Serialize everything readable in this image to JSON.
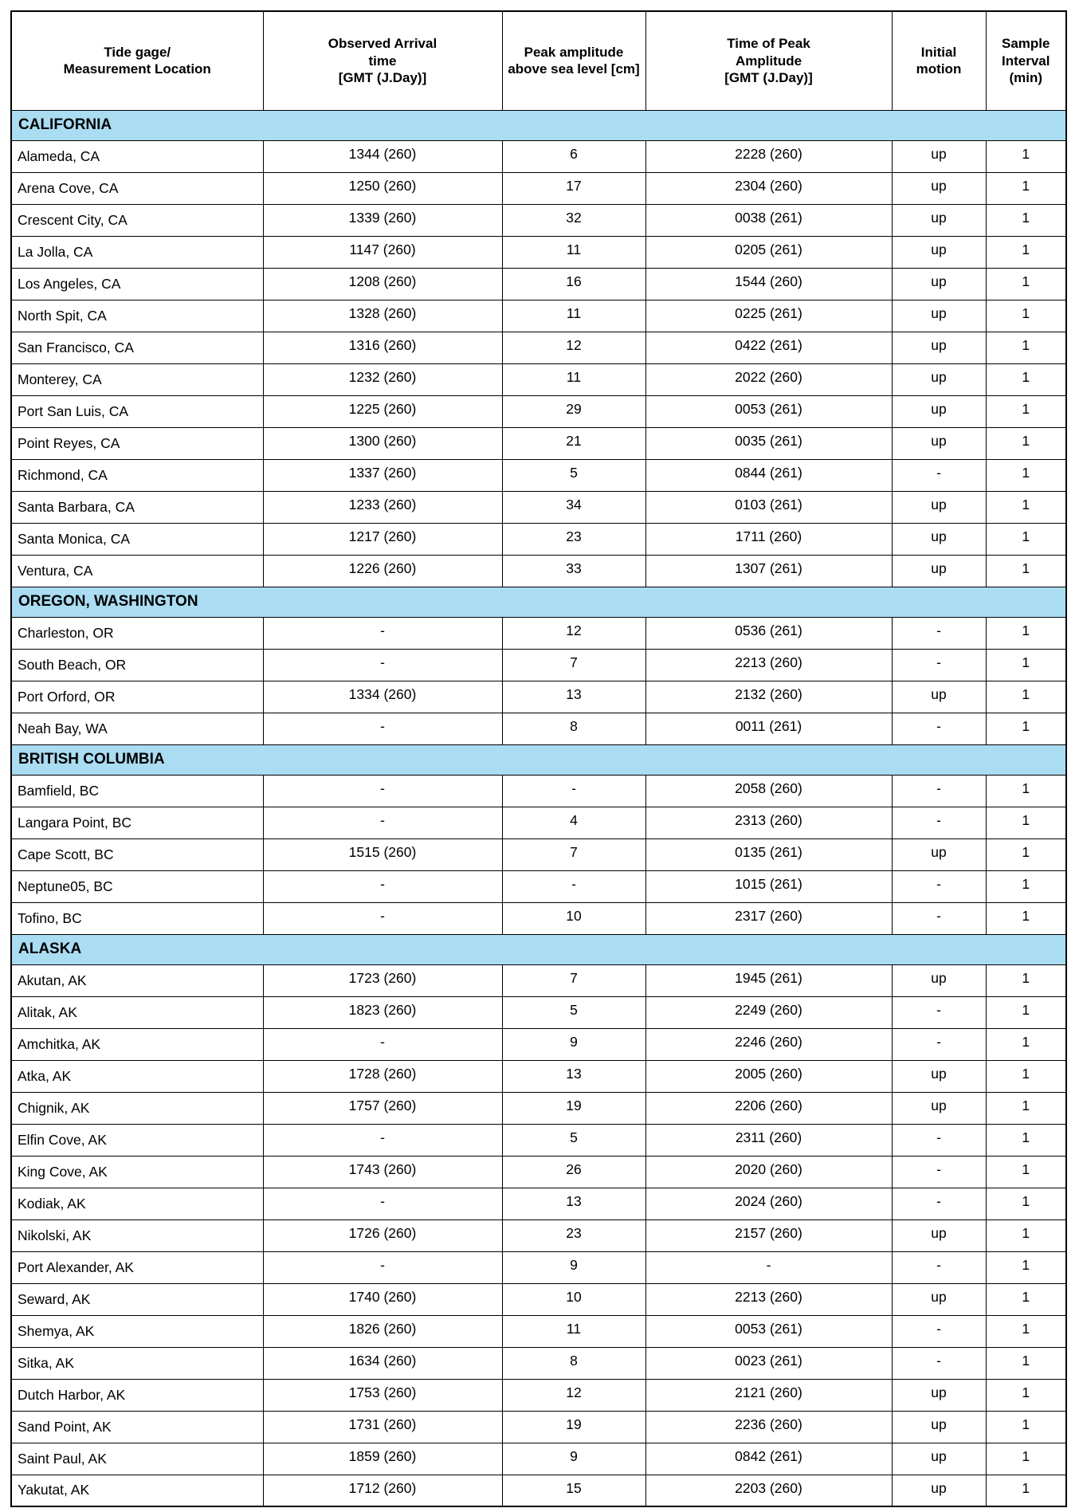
{
  "colors": {
    "section_header_bg": "#aadcf2",
    "border": "#000000",
    "page_bg": "#ffffff",
    "text": "#000000"
  },
  "table": {
    "columns": [
      "Tide gage/\nMeasurement Location",
      "Observed Arrival\ntime\n[GMT (J.Day)]",
      "Peak amplitude\nabove sea level [cm]",
      "Time of Peak\nAmplitude\n[GMT (J.Day)]",
      "Initial\nmotion",
      "Sample\nInterval\n(min)"
    ],
    "sections": [
      {
        "name": "CALIFORNIA",
        "rows": [
          [
            "Alameda, CA",
            "1344 (260)",
            "6",
            "2228 (260)",
            "up",
            "1"
          ],
          [
            "Arena Cove, CA",
            "1250 (260)",
            "17",
            "2304 (260)",
            "up",
            "1"
          ],
          [
            "Crescent City, CA",
            "1339 (260)",
            "32",
            "0038 (261)",
            "up",
            "1"
          ],
          [
            "La Jolla, CA",
            "1147 (260)",
            "11",
            "0205 (261)",
            "up",
            "1"
          ],
          [
            "Los Angeles, CA",
            "1208 (260)",
            "16",
            "1544 (260)",
            "up",
            "1"
          ],
          [
            "North Spit, CA",
            "1328 (260)",
            "11",
            "0225 (261)",
            "up",
            "1"
          ],
          [
            "San Francisco, CA",
            "1316 (260)",
            "12",
            "0422 (261)",
            "up",
            "1"
          ],
          [
            "Monterey, CA",
            "1232 (260)",
            "11",
            "2022 (260)",
            "up",
            "1"
          ],
          [
            "Port San Luis, CA",
            "1225 (260)",
            "29",
            "0053 (261)",
            "up",
            "1"
          ],
          [
            "Point Reyes, CA",
            "1300 (260)",
            "21",
            "0035 (261)",
            "up",
            "1"
          ],
          [
            "Richmond, CA",
            "1337 (260)",
            "5",
            "0844 (261)",
            "-",
            "1"
          ],
          [
            "Santa Barbara, CA",
            "1233 (260)",
            "34",
            "0103 (261)",
            "up",
            "1"
          ],
          [
            "Santa Monica, CA",
            "1217 (260)",
            "23",
            "1711 (260)",
            "up",
            "1"
          ],
          [
            "Ventura, CA",
            "1226 (260)",
            "33",
            "1307 (261)",
            "up",
            "1"
          ]
        ]
      },
      {
        "name": "OREGON, WASHINGTON",
        "rows": [
          [
            "Charleston, OR",
            "-",
            "12",
            "0536 (261)",
            "-",
            "1"
          ],
          [
            "South Beach, OR",
            "-",
            "7",
            "2213 (260)",
            "-",
            "1"
          ],
          [
            "Port Orford, OR",
            "1334 (260)",
            "13",
            "2132 (260)",
            "up",
            "1"
          ],
          [
            "Neah Bay, WA",
            "-",
            "8",
            "0011 (261)",
            "-",
            "1"
          ]
        ]
      },
      {
        "name": "BRITISH COLUMBIA",
        "rows": [
          [
            "Bamfield, BC",
            "-",
            "-",
            "2058 (260)",
            "-",
            "1"
          ],
          [
            "Langara Point, BC",
            "-",
            "4",
            "2313 (260)",
            "-",
            "1"
          ],
          [
            "Cape Scott, BC",
            "1515 (260)",
            "7",
            "0135 (261)",
            "up",
            "1"
          ],
          [
            "Neptune05, BC",
            "-",
            "-",
            "1015 (261)",
            "-",
            "1"
          ],
          [
            "Tofino, BC",
            "-",
            "10",
            "2317 (260)",
            "-",
            "1"
          ]
        ]
      },
      {
        "name": "ALASKA",
        "rows": [
          [
            "Akutan, AK",
            "1723 (260)",
            "7",
            "1945 (261)",
            "up",
            "1"
          ],
          [
            "Alitak, AK",
            "1823 (260)",
            "5",
            "2249 (260)",
            "-",
            "1"
          ],
          [
            "Amchitka, AK",
            "-",
            "9",
            "2246 (260)",
            "-",
            "1"
          ],
          [
            "Atka, AK",
            "1728 (260)",
            "13",
            "2005 (260)",
            "up",
            "1"
          ],
          [
            "Chignik, AK",
            "1757 (260)",
            "19",
            "2206 (260)",
            "up",
            "1"
          ],
          [
            "Elfin Cove, AK",
            "-",
            "5",
            "2311 (260)",
            "-",
            "1"
          ],
          [
            "King Cove, AK",
            "1743 (260)",
            "26",
            "2020 (260)",
            "-",
            "1"
          ],
          [
            "Kodiak, AK",
            "-",
            "13",
            "2024 (260)",
            "-",
            "1"
          ],
          [
            "Nikolski, AK",
            "1726 (260)",
            "23",
            "2157 (260)",
            "up",
            "1"
          ],
          [
            "Port Alexander, AK",
            "-",
            "9",
            "-",
            "-",
            "1"
          ],
          [
            "Seward, AK",
            "1740 (260)",
            "10",
            "2213 (260)",
            "up",
            "1"
          ],
          [
            "Shemya, AK",
            "1826 (260)",
            "11",
            "0053 (261)",
            "-",
            "1"
          ],
          [
            "Sitka, AK",
            "1634 (260)",
            "8",
            "0023 (261)",
            "-",
            "1"
          ],
          [
            "Dutch Harbor, AK",
            "1753 (260)",
            "12",
            "2121 (260)",
            "up",
            "1"
          ],
          [
            "Sand Point, AK",
            "1731 (260)",
            "19",
            "2236 (260)",
            "up",
            "1"
          ],
          [
            "Saint Paul, AK",
            "1859 (260)",
            "9",
            "0842 (261)",
            "up",
            "1"
          ],
          [
            "Yakutat, AK",
            "1712 (260)",
            "15",
            "2203 (260)",
            "up",
            "1"
          ]
        ]
      }
    ]
  }
}
